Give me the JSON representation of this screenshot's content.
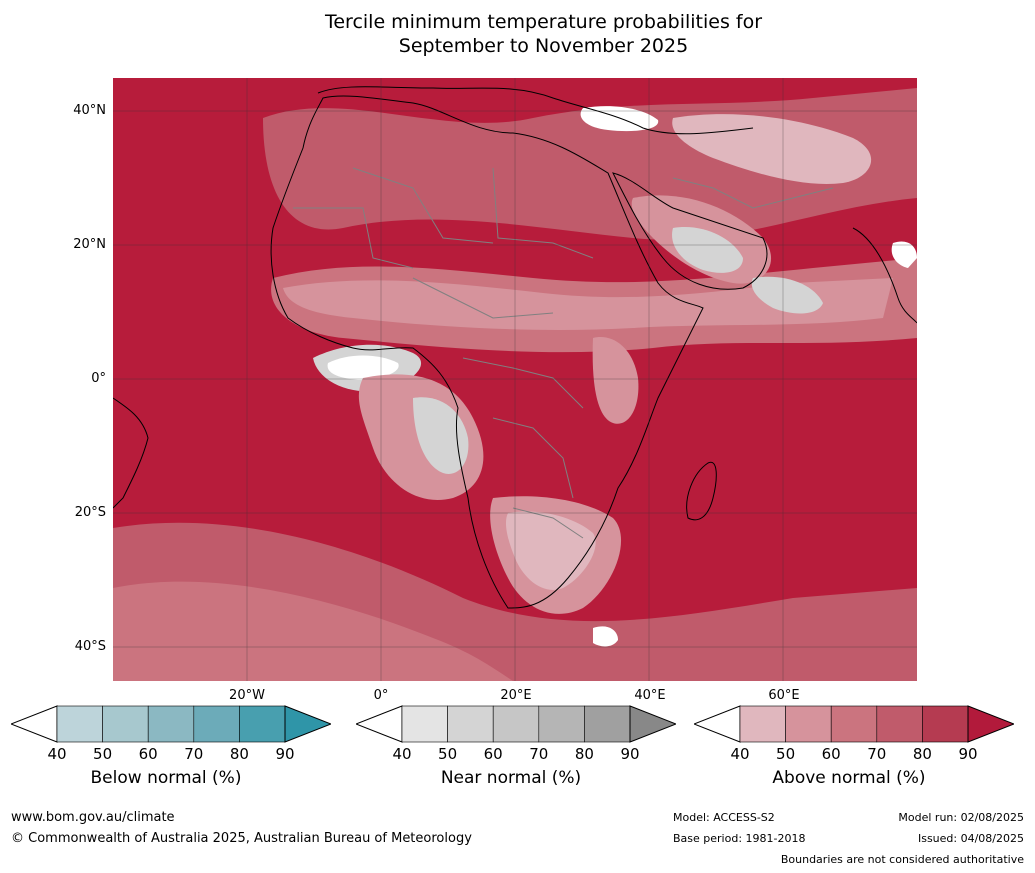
{
  "title_line1": "Tercile minimum temperature probabilities for",
  "title_line2": "September to November 2025",
  "lat_labels": [
    "40°N",
    "20°N",
    "0°",
    "20°S",
    "40°S"
  ],
  "lon_labels": [
    "20°W",
    "0°",
    "20°E",
    "40°E",
    "60°E"
  ],
  "colorbars": [
    {
      "title": "Below normal (%)",
      "ticks": [
        "40",
        "50",
        "60",
        "70",
        "80",
        "90"
      ],
      "colors": [
        "#ffffff",
        "#bdd4da",
        "#a7c8ce",
        "#8bb8c2",
        "#6cabb9",
        "#489faf",
        "#2f95a8"
      ]
    },
    {
      "title": "Near normal (%)",
      "ticks": [
        "40",
        "50",
        "60",
        "70",
        "80",
        "90"
      ],
      "colors": [
        "#ffffff",
        "#e4e4e4",
        "#d4d4d4",
        "#c6c6c6",
        "#b5b5b5",
        "#a0a0a0",
        "#888888"
      ]
    },
    {
      "title": "Above normal (%)",
      "ticks": [
        "40",
        "50",
        "60",
        "70",
        "80",
        "90"
      ],
      "colors": [
        "#ffffff",
        "#e0b7be",
        "#d6939c",
        "#cb747f",
        "#c05b6b",
        "#b53b51",
        "#b21a3b"
      ]
    }
  ],
  "footer": {
    "website": "www.bom.gov.au/climate",
    "copyright": "© Commonwealth of Australia 2025, Australian Bureau of Meteorology",
    "model": "Model: ACCESS-S2",
    "base_period": "Base period: 1981-2018",
    "model_run": "Model run: 02/08/2025",
    "issued": "Issued: 04/08/2025",
    "disclaimer": "Boundaries are not considered authoritative"
  },
  "map_colors": {
    "ocean_dominant": "#b71c3b",
    "level_80": "#c05b6b",
    "level_70": "#cb747f",
    "level_60": "#d6939c",
    "level_50": "#e0b7be",
    "near_normal": "#d4d4d4",
    "white": "#ffffff"
  }
}
